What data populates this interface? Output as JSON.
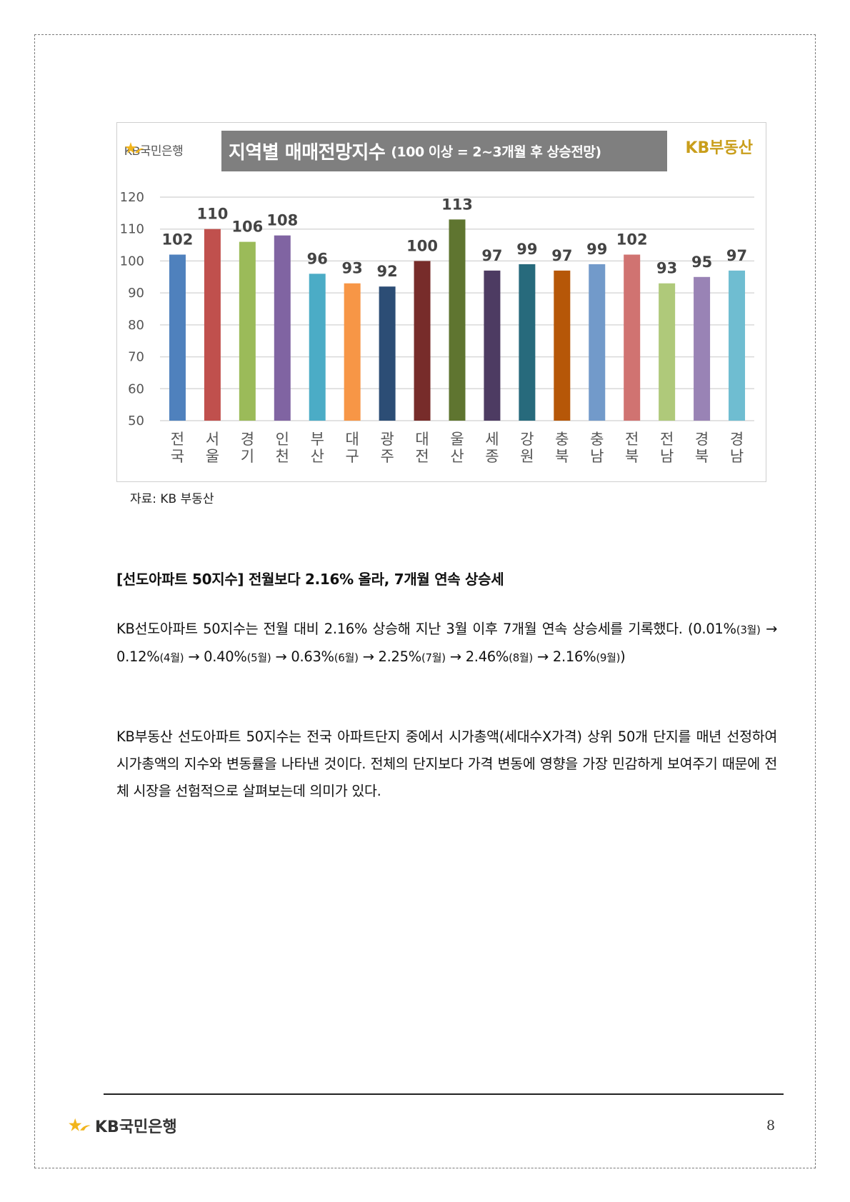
{
  "chart": {
    "logo_text": "KB국민은행",
    "title": "지역별 매매전망지수",
    "subtitle": "(100 이상 = 2~3개월 후 상승전망)",
    "brand": "KB부동산"
  },
  "chart_data": {
    "type": "bar",
    "title": "지역별 매매전망지수 (100 이상 = 2~3개월 후 상승전망)",
    "categories": [
      "전국",
      "서울",
      "경기",
      "인천",
      "부산",
      "대구",
      "광주",
      "대전",
      "울산",
      "세종",
      "강원",
      "충북",
      "충남",
      "전북",
      "전남",
      "경북",
      "경남"
    ],
    "values": [
      102,
      110,
      106,
      108,
      96,
      93,
      92,
      100,
      113,
      97,
      99,
      97,
      99,
      102,
      93,
      95,
      97
    ],
    "colors": [
      "#4f81bd",
      "#c0504d",
      "#9bbb59",
      "#8064a2",
      "#4bacc6",
      "#f79646",
      "#2c4d75",
      "#772c2a",
      "#5f7530",
      "#4d3b62",
      "#276a7c",
      "#b65708",
      "#729aca",
      "#d07371",
      "#afc97a",
      "#9983b5",
      "#6fbdd1"
    ],
    "ylim": [
      50,
      120
    ],
    "yticks": [
      50,
      60,
      70,
      80,
      90,
      100,
      110,
      120
    ],
    "grid": true,
    "xlabel": "",
    "ylabel": ""
  },
  "source": "자료: KB 부동산",
  "section": {
    "title": "[선도아파트 50지수] 전월보다 2.16% 올라, 7개월 연속 상승세"
  },
  "para1": {
    "intro": "KB선도아파트 50지수는 전월 대비 2.16% 상승해 지난 3월 이후 7개월 연속 상승세를 기록했다.",
    "v1": "(0.01%",
    "m1": "(3월)",
    "v2": "0.12%",
    "m2": "(4월)",
    "v3": "0.40%",
    "m3": "(5월)",
    "v4": "0.63%",
    "m4": "(6월)",
    "v5": "2.25%",
    "m5": "(7월)",
    "v6": "2.46%",
    "m6": "(8월)",
    "v7": "2.16%",
    "m7": "(9월)",
    "close": ")",
    "arrow": "→"
  },
  "para2": "KB부동산 선도아파트 50지수는 전국 아파트단지 중에서 시가총액(세대수X가격) 상위 50개 단지를 매년 선정하여 시가총액의 지수와 변동률을 나타낸 것이다. 전체의 단지보다 가격 변동에 영향을 가장 민감하게 보여주기 때문에 전체 시장을 선험적으로 살펴보는데 의미가 있다.",
  "footer": {
    "logo_text": "KB국민은행",
    "page_number": "8"
  },
  "icons": {
    "logo": "kb-star-icon"
  },
  "colors": {
    "star": "#f2b51c",
    "brand_gold": "#c99e1b",
    "title_bg": "#7f7f7f"
  }
}
